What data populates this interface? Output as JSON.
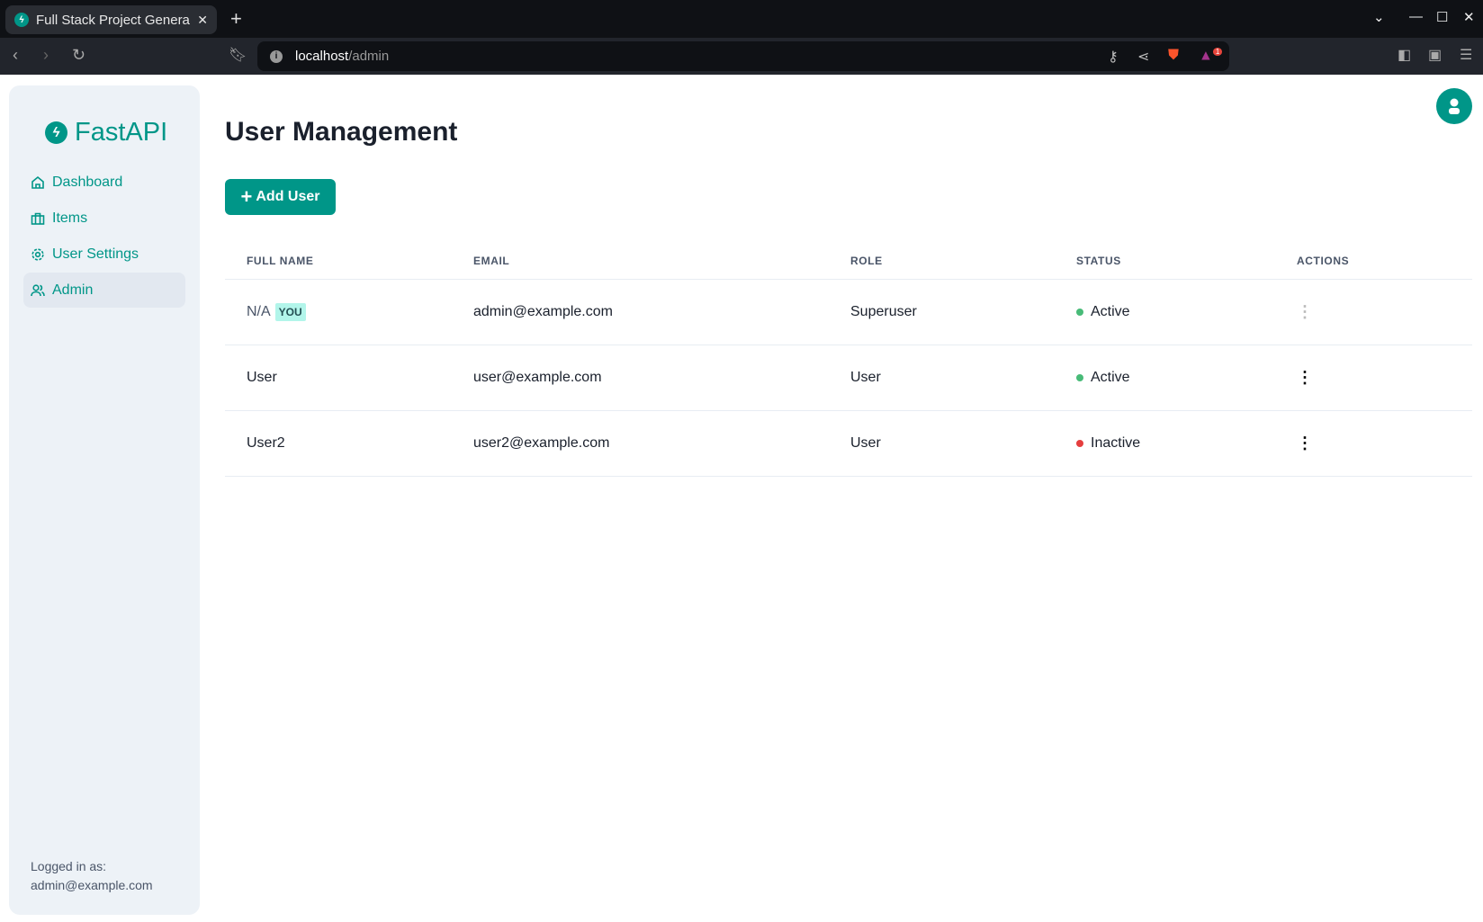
{
  "browser": {
    "tab_title": "Full Stack Project Genera",
    "url_host": "localhost",
    "url_path": "/admin",
    "notification_count": "1"
  },
  "sidebar": {
    "logo": "FastAPI",
    "items": [
      {
        "label": "Dashboard",
        "icon": "home-icon"
      },
      {
        "label": "Items",
        "icon": "briefcase-icon"
      },
      {
        "label": "User Settings",
        "icon": "gear-icon"
      },
      {
        "label": "Admin",
        "icon": "users-icon",
        "active": true
      }
    ],
    "logged_in_label": "Logged in as:",
    "logged_in_email": "admin@example.com"
  },
  "main": {
    "title": "User Management",
    "add_button": "Add User",
    "table": {
      "headers": [
        "FULL NAME",
        "EMAIL",
        "ROLE",
        "STATUS",
        "ACTIONS"
      ],
      "rows": [
        {
          "name": "N/A",
          "badge": "YOU",
          "email": "admin@example.com",
          "role": "Superuser",
          "status": "Active",
          "status_color": "#48bb78",
          "actions_disabled": true
        },
        {
          "name": "User",
          "email": "user@example.com",
          "role": "User",
          "status": "Active",
          "status_color": "#48bb78",
          "actions_disabled": false
        },
        {
          "name": "User2",
          "email": "user2@example.com",
          "role": "User",
          "status": "Inactive",
          "status_color": "#e53e3e",
          "actions_disabled": false
        }
      ]
    }
  },
  "colors": {
    "accent": "#009688",
    "sidebar_bg": "#edf2f7"
  }
}
